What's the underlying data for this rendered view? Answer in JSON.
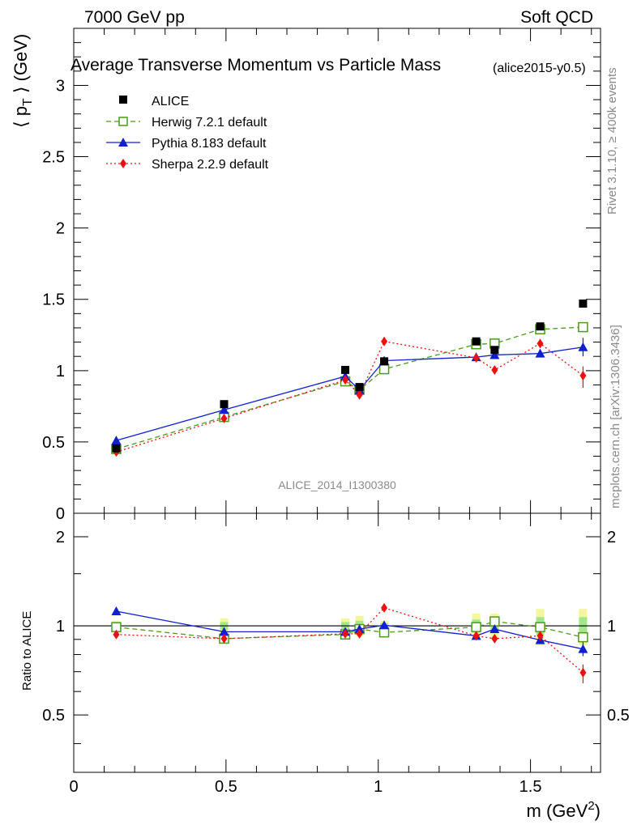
{
  "header": {
    "left": "7000 GeV pp",
    "right": "Soft QCD"
  },
  "side_labels": {
    "rivet": "Rivet 3.1.10, ≥ 400k events",
    "mcplots": "mcplots.cern.ch [arXiv:1306.3436]"
  },
  "chart_data": {
    "type": "scatter",
    "title": "Average Transverse Momentum vs Particle Mass",
    "subtitle": "(alice2015-y0.5)",
    "watermark": "ALICE_2014_I1300380",
    "xlabel": "m (GeV",
    "xlabel_sup": "2",
    "xlabel_close": ")",
    "ylabel": "⟨ p",
    "ylabel_sub": "T",
    "ylabel_rest": " ⟩ (GeV)",
    "ratio_ylabel": "Ratio to ALICE",
    "xlim": [
      0,
      1.73
    ],
    "ylim": [
      0,
      3.4
    ],
    "ratio_ylim": [
      0.32,
      2.4
    ],
    "x_ticks": [
      {
        "v": 0,
        "label": "0"
      },
      {
        "v": 0.5,
        "label": "0.5"
      },
      {
        "v": 1,
        "label": "1"
      },
      {
        "v": 1.5,
        "label": "1.5"
      }
    ],
    "y_ticks": [
      {
        "v": 0,
        "label": "0"
      },
      {
        "v": 0.5,
        "label": "0.5"
      },
      {
        "v": 1,
        "label": "1"
      },
      {
        "v": 1.5,
        "label": "1.5"
      },
      {
        "v": 2,
        "label": "2"
      },
      {
        "v": 2.5,
        "label": "2.5"
      },
      {
        "v": 3,
        "label": "3"
      }
    ],
    "ratio_y_ticks": [
      {
        "v": 0.5,
        "label": "0.5"
      },
      {
        "v": 1,
        "label": "1"
      },
      {
        "v": 2,
        "label": "2"
      }
    ],
    "x": [
      0.1396,
      0.4937,
      0.8917,
      0.9383,
      1.0195,
      1.3217,
      1.3822,
      1.5318,
      1.6725
    ],
    "data": {
      "name": "ALICE",
      "color": "#000000",
      "values": [
        0.455,
        0.765,
        1.005,
        0.885,
        1.065,
        1.205,
        1.145,
        1.31,
        1.47
      ]
    },
    "ratio_bands": [
      0.02,
      0.03,
      0.03,
      0.04,
      0.02,
      0.05,
      0.05,
      0.07,
      0.07
    ],
    "series": [
      {
        "name": "Herwig 7.2.1 default",
        "color": "#4a9a1c",
        "marker": "open-square",
        "dash": "6,4",
        "values": [
          0.45,
          0.675,
          0.925,
          0.865,
          1.01,
          1.185,
          1.19,
          1.29,
          1.305
        ],
        "ratio": [
          0.99,
          0.905,
          0.935,
          0.975,
          0.95,
          0.99,
          1.035,
          0.99,
          0.915
        ]
      },
      {
        "name": "Pythia 8.183 default",
        "color": "#1020d0",
        "marker": "triangle",
        "dash": "",
        "values": [
          0.51,
          0.725,
          0.96,
          0.865,
          1.07,
          1.095,
          1.11,
          1.12,
          1.165
        ],
        "ratio": [
          1.12,
          0.955,
          0.955,
          0.975,
          1.005,
          0.925,
          0.975,
          0.895,
          0.835
        ]
      },
      {
        "name": "Sherpa 2.2.9 default",
        "color": "#ee1010",
        "marker": "diamond",
        "dash": "2,3",
        "values": [
          0.43,
          0.665,
          0.935,
          0.83,
          1.205,
          1.09,
          1.005,
          1.19,
          0.965
        ],
        "ratio": [
          0.935,
          0.905,
          0.94,
          0.94,
          1.15,
          0.925,
          0.905,
          0.925,
          0.695
        ]
      }
    ]
  }
}
